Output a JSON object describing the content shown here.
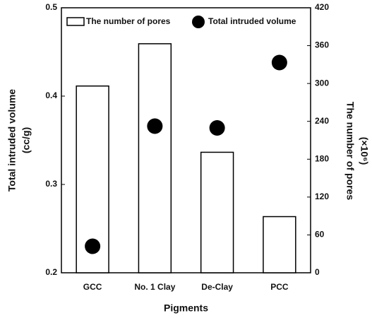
{
  "chart_data": {
    "type": "bar-scatter",
    "categories": [
      "GCC",
      "No. 1 Clay",
      "De-Clay",
      "PCC"
    ],
    "xlabel": "Pigments",
    "ylabel": [
      "Total intruded volume",
      "(cc/g)"
    ],
    "y2label": [
      "The number of pores",
      "(×10⁶)"
    ],
    "ylim": [
      0.2,
      0.5
    ],
    "yticks": [
      0.2,
      0.3,
      0.4,
      0.5
    ],
    "y2lim": [
      0,
      420
    ],
    "y2ticks": [
      0,
      60,
      120,
      180,
      240,
      300,
      360,
      420
    ],
    "series": [
      {
        "name": "The number of pores",
        "type": "bar",
        "axis": "y2",
        "color": "#ffffff",
        "values": [
          296,
          363,
          191,
          89
        ]
      },
      {
        "name": "Total intruded volume",
        "type": "scatter",
        "color": "#000000",
        "values": [
          0.23,
          0.366,
          0.364,
          0.438
        ]
      }
    ]
  }
}
